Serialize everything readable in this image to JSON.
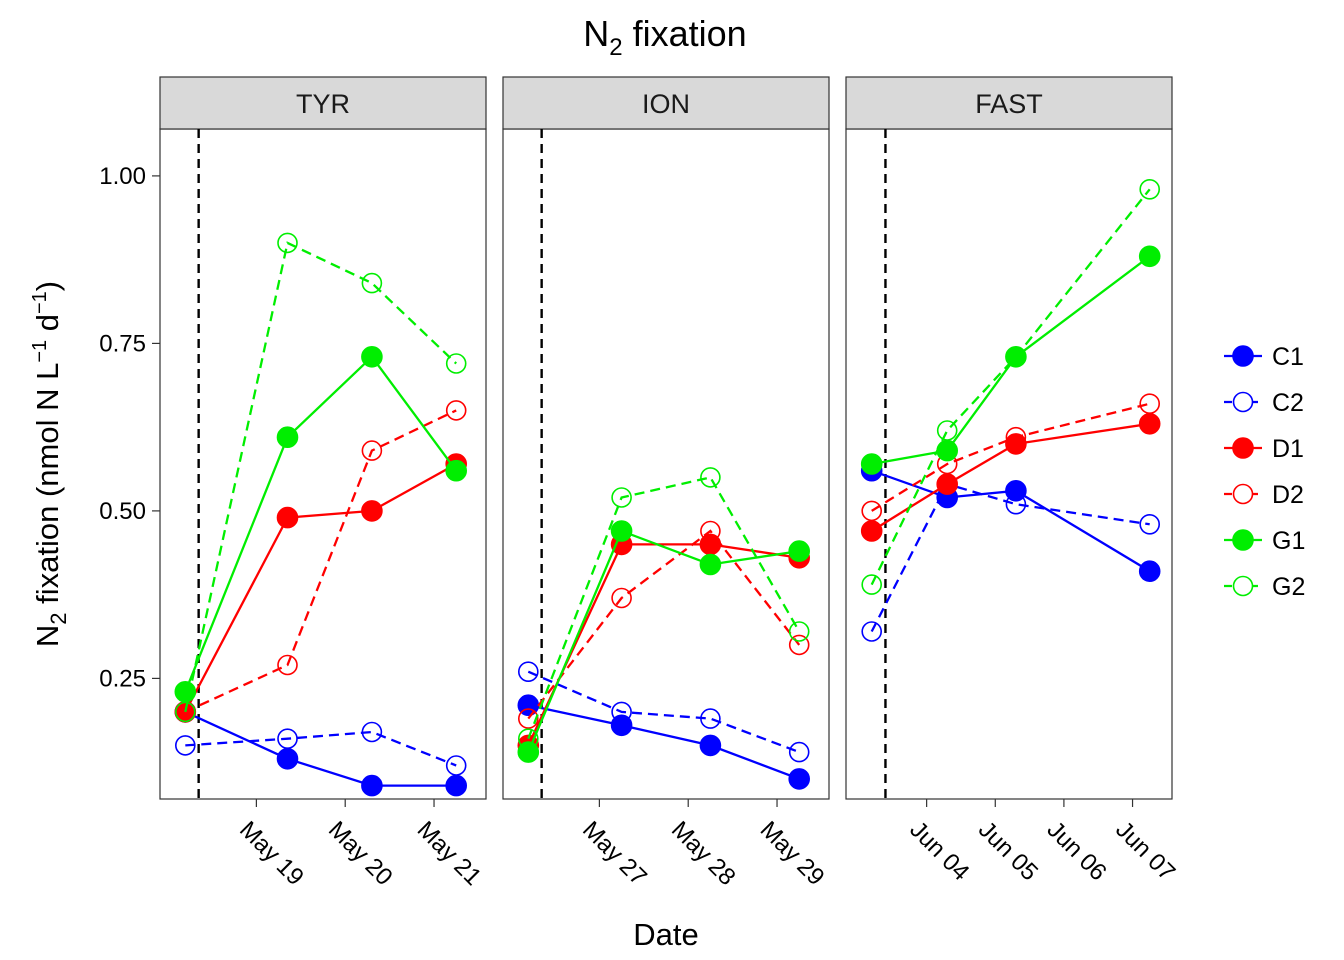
{
  "chart_data": {
    "type": "line",
    "title": "N2 fixation",
    "xlabel": "Date",
    "ylabel": "N2 fixation (nmol N L-1 d-1)",
    "ylim": [
      0.07,
      1.07
    ],
    "yticks": [
      0.25,
      0.5,
      0.75,
      1.0
    ],
    "ytick_labels": [
      "0.25",
      "0.50",
      "0.75",
      "1.00"
    ],
    "grid": false,
    "legend_position": "right",
    "styles": {
      "C1": {
        "color": "#0000FF",
        "filled": true,
        "dashed": false
      },
      "C2": {
        "color": "#0000FF",
        "filled": false,
        "dashed": true
      },
      "D1": {
        "color": "#FF0000",
        "filled": true,
        "dashed": false
      },
      "D2": {
        "color": "#FF0000",
        "filled": false,
        "dashed": true
      },
      "G1": {
        "color": "#00EE00",
        "filled": true,
        "dashed": false
      },
      "G2": {
        "color": "#00EE00",
        "filled": false,
        "dashed": true
      }
    },
    "legend": [
      "C1",
      "C2",
      "D1",
      "D2",
      "G1",
      "G2"
    ],
    "panels": [
      {
        "label": "TYR",
        "xlim": [
          "2016-05-17",
          "2016-05-21"
        ],
        "xlim_offset_days": [
          0.0,
          3.4
        ],
        "treatment_start": "2016-05-18",
        "treatment_offset_days": 0.3,
        "ticks": [
          {
            "label": "May 19",
            "offset_days": 0.95
          },
          {
            "label": "May 20",
            "offset_days": 1.95
          },
          {
            "label": "May 21",
            "offset_days": 2.95
          }
        ],
        "x_offsets": [
          0.15,
          1.3,
          2.25,
          3.2
        ],
        "series": [
          {
            "name": "C1",
            "values": [
              0.2,
              0.13,
              0.09,
              0.09
            ]
          },
          {
            "name": "C2",
            "values": [
              0.15,
              0.16,
              0.17,
              0.12
            ]
          },
          {
            "name": "D1",
            "values": [
              0.2,
              0.49,
              0.5,
              0.57
            ]
          },
          {
            "name": "D2",
            "values": [
              0.2,
              0.27,
              0.59,
              0.65
            ]
          },
          {
            "name": "G1",
            "values": [
              0.23,
              0.61,
              0.73,
              0.56
            ]
          },
          {
            "name": "G2",
            "values": [
              0.2,
              0.9,
              0.84,
              0.72
            ]
          }
        ]
      },
      {
        "label": "ION",
        "xlim": [
          "2016-05-25",
          "2016-05-29"
        ],
        "xlim_offset_days": [
          0.0,
          3.4
        ],
        "treatment_start": "2016-05-26",
        "treatment_offset_days": 0.3,
        "ticks": [
          {
            "label": "May 27",
            "offset_days": 0.95
          },
          {
            "label": "May 28",
            "offset_days": 1.95
          },
          {
            "label": "May 29",
            "offset_days": 2.95
          }
        ],
        "x_offsets": [
          0.15,
          1.2,
          2.2,
          3.2
        ],
        "series": [
          {
            "name": "C1",
            "values": [
              0.21,
              0.18,
              0.15,
              0.1
            ]
          },
          {
            "name": "C2",
            "values": [
              0.26,
              0.2,
              0.19,
              0.14
            ]
          },
          {
            "name": "D1",
            "values": [
              0.15,
              0.45,
              0.45,
              0.43
            ]
          },
          {
            "name": "D2",
            "values": [
              0.19,
              0.37,
              0.47,
              0.3
            ]
          },
          {
            "name": "G1",
            "values": [
              0.14,
              0.47,
              0.42,
              0.44
            ]
          },
          {
            "name": "G2",
            "values": [
              0.16,
              0.52,
              0.55,
              0.32
            ]
          }
        ]
      },
      {
        "label": "FAST",
        "xlim": [
          "2016-06-03",
          "2016-06-07"
        ],
        "xlim_offset_days": [
          0.0,
          4.4
        ],
        "treatment_start": "2016-06-03",
        "treatment_offset_days": 0.4,
        "ticks": [
          {
            "label": "Jun 04",
            "offset_days": 1.0
          },
          {
            "label": "Jun 05",
            "offset_days": 2.0
          },
          {
            "label": "Jun 06",
            "offset_days": 3.0
          },
          {
            "label": "Jun 07",
            "offset_days": 4.0
          }
        ],
        "x_offsets": [
          0.2,
          1.3,
          2.3,
          4.25
        ],
        "series": [
          {
            "name": "C1",
            "values": [
              0.56,
              0.52,
              0.53,
              0.41
            ]
          },
          {
            "name": "C2",
            "values": [
              0.32,
              0.54,
              0.51,
              0.48
            ]
          },
          {
            "name": "D1",
            "values": [
              0.47,
              0.54,
              0.6,
              0.63
            ]
          },
          {
            "name": "D2",
            "values": [
              0.5,
              0.57,
              0.61,
              0.66
            ]
          },
          {
            "name": "G1",
            "values": [
              0.57,
              0.59,
              0.73,
              0.88
            ]
          },
          {
            "name": "G2",
            "values": [
              0.39,
              0.62,
              0.73,
              0.98
            ]
          }
        ]
      }
    ]
  }
}
